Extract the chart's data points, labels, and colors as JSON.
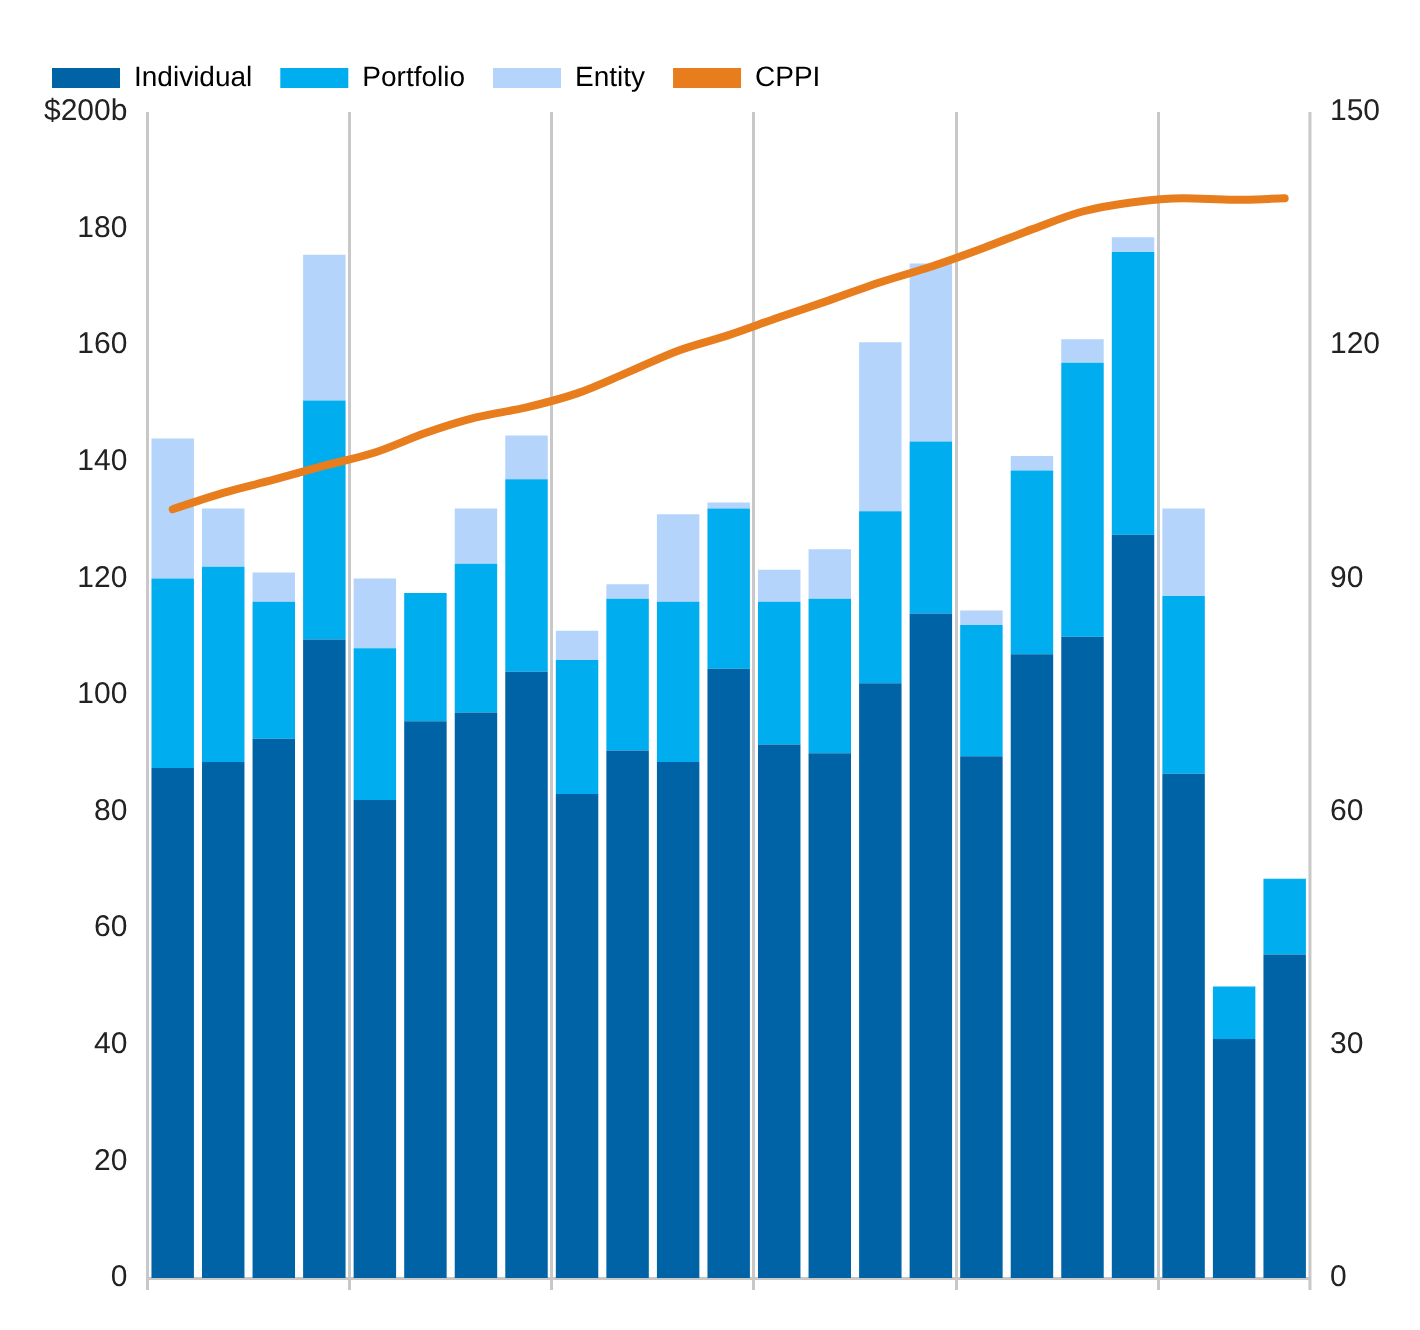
{
  "chart_data": {
    "type": "bar",
    "stacked": true,
    "categories": [
      null,
      null,
      null,
      null,
      null,
      null,
      null,
      null,
      null,
      null,
      null,
      null,
      null,
      null,
      null,
      null,
      null,
      null,
      null,
      null,
      null,
      null,
      null
    ],
    "series": [
      {
        "name": "Individual",
        "color": "#0063a5",
        "values": [
          87.5,
          88.5,
          92.5,
          109.5,
          82,
          95.5,
          97,
          104,
          83,
          90.5,
          88.5,
          104.5,
          91.5,
          90,
          102,
          114,
          89.5,
          107,
          110,
          127.5,
          86.5,
          41,
          55.5
        ]
      },
      {
        "name": "Portfolio",
        "color": "#00adef",
        "values": [
          32.5,
          33.5,
          23.5,
          41,
          26,
          22,
          25.5,
          33,
          23,
          26,
          27.5,
          27.5,
          24.5,
          26.5,
          29.5,
          29.5,
          22.5,
          31.5,
          47,
          48.5,
          30.5,
          9,
          13
        ]
      },
      {
        "name": "Entity",
        "color": "#b5d4fb",
        "values": [
          24,
          10,
          5,
          25,
          12,
          0,
          9.5,
          7.5,
          5,
          2.5,
          15,
          1,
          5.5,
          8.5,
          29,
          30.5,
          2.5,
          2.5,
          4,
          2.5,
          15,
          0,
          0
        ]
      },
      {
        "name": "CPPI",
        "type": "line",
        "axis": "y2",
        "color": "#e87d1e",
        "values": [
          98.9,
          101,
          102.7,
          104.5,
          106.2,
          108.7,
          110.7,
          112,
          113.8,
          116.5,
          119.3,
          121.3,
          123.6,
          125.8,
          128.1,
          130.1,
          132.4,
          134.9,
          137.2,
          138.4,
          138.9,
          138.7,
          138.9
        ]
      }
    ],
    "ylim": [
      0,
      200
    ],
    "yticks": [
      0,
      20,
      40,
      60,
      80,
      100,
      120,
      140,
      160,
      180,
      {
        "value": 200,
        "label": "$200b"
      }
    ],
    "y2lim": [
      0,
      150
    ],
    "y2ticks": [
      0,
      30,
      60,
      90,
      120,
      150
    ],
    "grid": "x",
    "legend": "top left",
    "marker": "none"
  }
}
